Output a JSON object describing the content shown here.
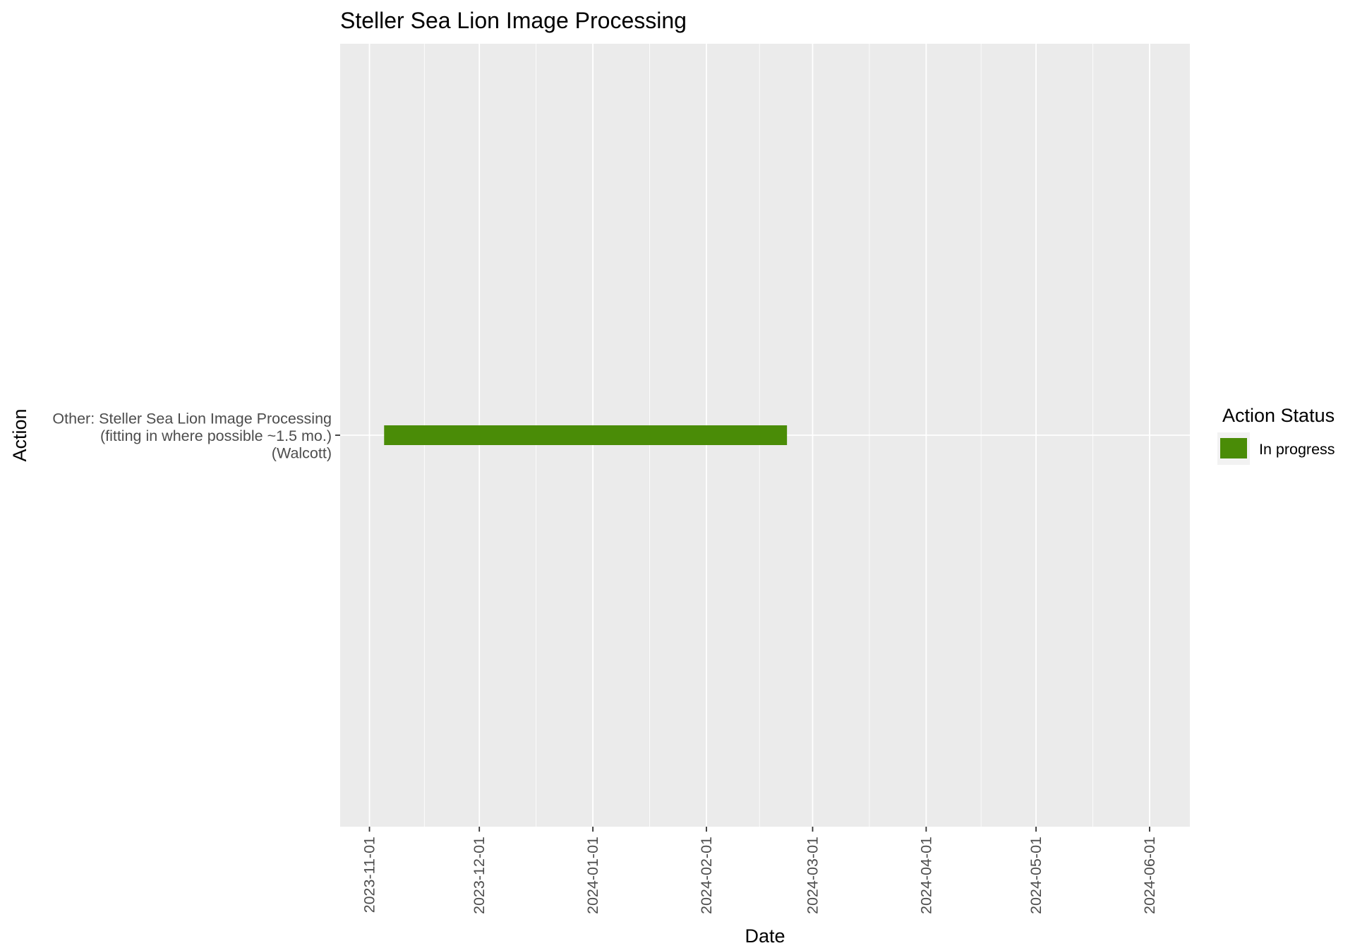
{
  "chart_data": {
    "type": "bar",
    "orientation": "horizontal",
    "title": "Steller Sea Lion Image Processing",
    "xlabel": "Date",
    "ylabel": "Action",
    "x_ticks": [
      "2023-11-01",
      "2023-12-01",
      "2024-01-01",
      "2024-02-01",
      "2024-03-01",
      "2024-04-01",
      "2024-05-01",
      "2024-06-01"
    ],
    "xlim": [
      "2023-10-24",
      "2024-06-12"
    ],
    "grid": true,
    "categories": [
      {
        "lines": [
          "Other: Steller Sea Lion Image Processing",
          "(fitting in where possible ~1.5 mo.)",
          "(Walcott)"
        ]
      }
    ],
    "bars": [
      {
        "category_index": 0,
        "start": "2023-11-05",
        "end": "2024-02-23",
        "status": "In progress"
      }
    ],
    "legend": {
      "title": "Action Status",
      "placement": "right",
      "entries": [
        {
          "label": "In progress",
          "color": "#4a8c07"
        }
      ]
    },
    "colors": {
      "panel": "#ebebeb",
      "grid": "#ffffff",
      "in_progress": "#4a8c07"
    }
  }
}
